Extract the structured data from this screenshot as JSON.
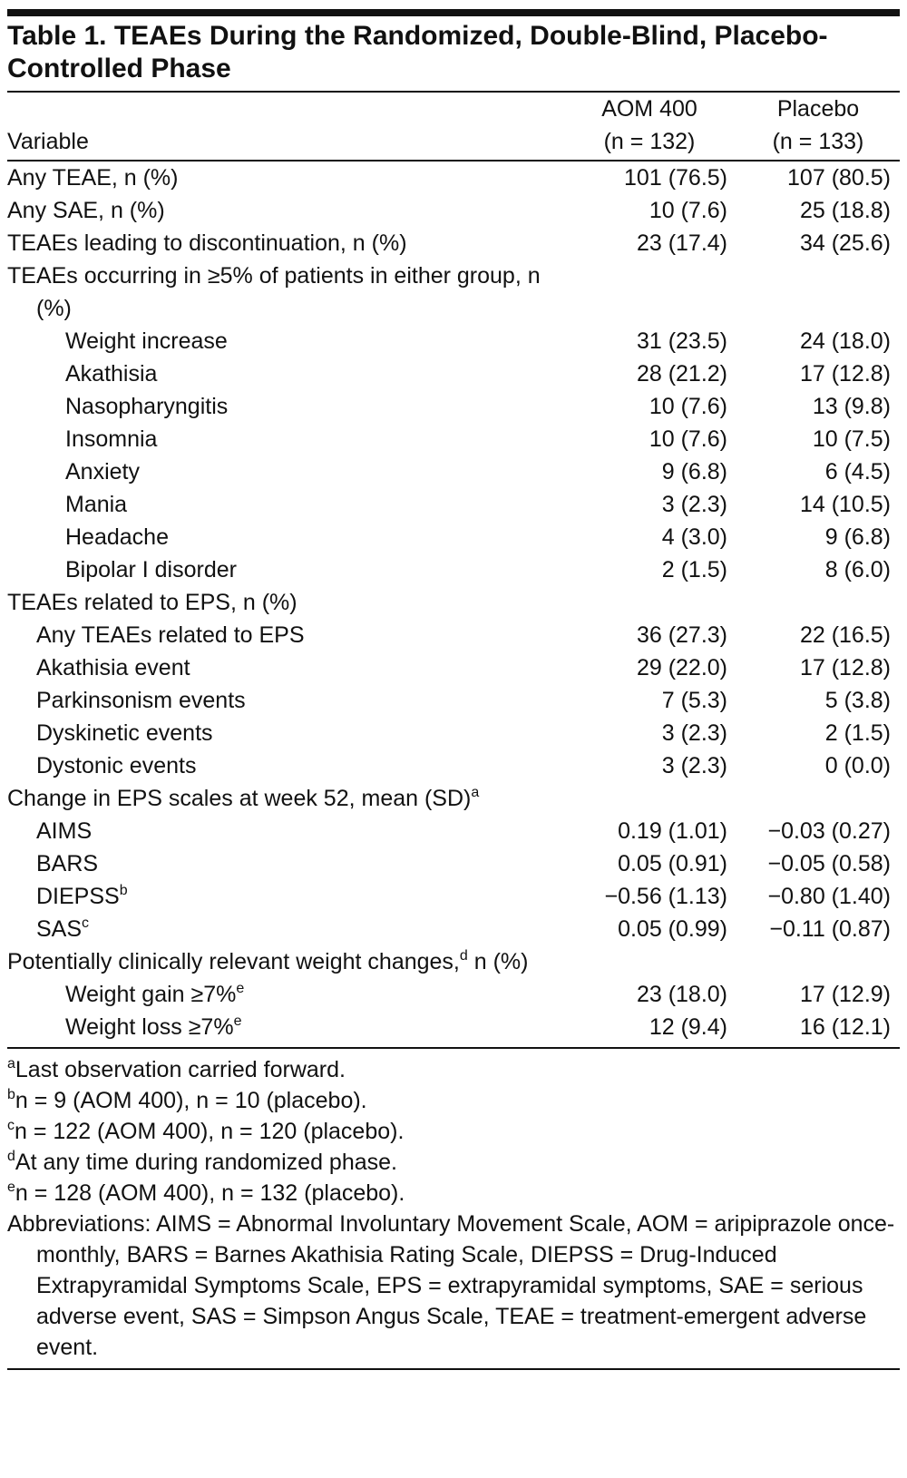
{
  "title": "Table 1. TEAEs During the Randomized, Double-Blind, Placebo-Controlled Phase",
  "table": {
    "header": {
      "variable": "Variable",
      "columns": [
        [
          "AOM 400",
          "(n = 132)"
        ],
        [
          "Placebo",
          "(n = 133)"
        ]
      ]
    },
    "rows": [
      {
        "label": "Any TEAE, n (%)",
        "level": 0,
        "aom": "101 (76.5)",
        "placebo": "107 (80.5)"
      },
      {
        "label": "Any SAE, n (%)",
        "level": 0,
        "aom": "10 (7.6)",
        "placebo": "25 (18.8)"
      },
      {
        "label": "TEAEs leading to discontinuation, n (%)",
        "level": 0,
        "aom": "23 (17.4)",
        "placebo": "34 (25.6)"
      },
      {
        "label": "TEAEs occurring in ≥5% of patients in either group, n (%)",
        "level": 0
      },
      {
        "label": "Weight increase",
        "level": 2,
        "aom": "31 (23.5)",
        "placebo": "24 (18.0)"
      },
      {
        "label": "Akathisia",
        "level": 2,
        "aom": "28 (21.2)",
        "placebo": "17 (12.8)"
      },
      {
        "label": "Nasopharyngitis",
        "level": 2,
        "aom": "10 (7.6)",
        "placebo": "13 (9.8)"
      },
      {
        "label": "Insomnia",
        "level": 2,
        "aom": "10 (7.6)",
        "placebo": "10 (7.5)"
      },
      {
        "label": "Anxiety",
        "level": 2,
        "aom": "9 (6.8)",
        "placebo": "6 (4.5)"
      },
      {
        "label": "Mania",
        "level": 2,
        "aom": "3 (2.3)",
        "placebo": "14 (10.5)"
      },
      {
        "label": "Headache",
        "level": 2,
        "aom": "4 (3.0)",
        "placebo": "9 (6.8)"
      },
      {
        "label": "Bipolar I disorder",
        "level": 2,
        "aom": "2 (1.5)",
        "placebo": "8 (6.0)"
      },
      {
        "label": "TEAEs related to EPS, n (%)",
        "level": 0
      },
      {
        "label": "Any TEAEs related to EPS",
        "level": 1,
        "aom": "36 (27.3)",
        "placebo": "22 (16.5)"
      },
      {
        "label": "Akathisia event",
        "level": 1,
        "aom": "29 (22.0)",
        "placebo": "17 (12.8)"
      },
      {
        "label": "Parkinsonism events",
        "level": 1,
        "aom": "7 (5.3)",
        "placebo": "5 (3.8)"
      },
      {
        "label": "Dyskinetic events",
        "level": 1,
        "aom": "3 (2.3)",
        "placebo": "2 (1.5)"
      },
      {
        "label": "Dystonic events",
        "level": 1,
        "aom": "3 (2.3)",
        "placebo": "0 (0.0)"
      },
      {
        "label": "Change in EPS scales at week 52, mean (SD)",
        "sup": "a",
        "level": 0
      },
      {
        "label": "AIMS",
        "level": 1,
        "aom": "0.19 (1.01)",
        "placebo": "−0.03 (0.27)"
      },
      {
        "label": "BARS",
        "level": 1,
        "aom": "0.05 (0.91)",
        "placebo": "−0.05 (0.58)"
      },
      {
        "label": "DIEPSS",
        "sup": "b",
        "level": 1,
        "aom": "−0.56 (1.13)",
        "placebo": "−0.80 (1.40)"
      },
      {
        "label": "SAS",
        "sup": "c",
        "level": 1,
        "aom": "0.05 (0.99)",
        "placebo": "−0.11 (0.87)"
      },
      {
        "label": "Potentially clinically relevant weight changes,",
        "sup": "d",
        "label_cont": " n (%)",
        "level": 0
      },
      {
        "label": "Weight gain ≥7%",
        "sup": "e",
        "level": 2,
        "aom": "23 (18.0)",
        "placebo": "17 (12.9)"
      },
      {
        "label": "Weight loss ≥7%",
        "sup": "e",
        "level": 2,
        "aom": "12 (9.4)",
        "placebo": "16 (12.1)"
      }
    ]
  },
  "footnotes": [
    {
      "mark": "a",
      "text": "Last observation carried forward."
    },
    {
      "mark": "b",
      "text": "n = 9 (AOM 400), n = 10 (placebo)."
    },
    {
      "mark": "c",
      "text": "n = 122 (AOM 400), n = 120 (placebo)."
    },
    {
      "mark": "d",
      "text": "At any time during randomized phase."
    },
    {
      "mark": "e",
      "text": "n = 128 (AOM 400), n = 132 (placebo)."
    }
  ],
  "abbreviations": "Abbreviations: AIMS = Abnormal Involuntary Movement Scale, AOM = aripiprazole once-monthly, BARS = Barnes Akathisia Rating Scale, DIEPSS = Drug-Induced Extrapyramidal Symptoms Scale, EPS = extrapyramidal symptoms, SAE = serious adverse event, SAS = Simpson Angus Scale, TEAE = treatment-emergent adverse event."
}
